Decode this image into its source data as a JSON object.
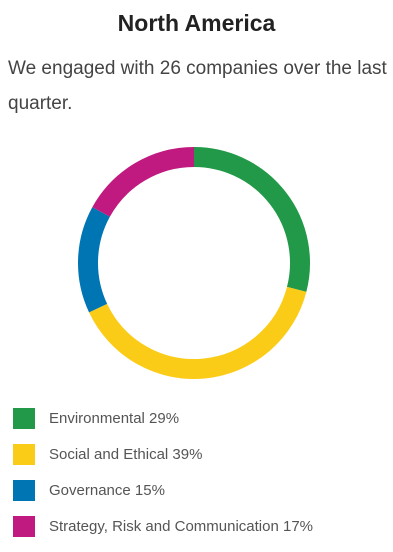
{
  "title": "North America",
  "intro": "We engaged with 26 companies over the last quarter.",
  "chart_data": {
    "type": "pie",
    "style": "donut",
    "title": "",
    "categories": [
      "Environmental",
      "Social and Ethical",
      "Governance",
      "Strategy, Risk and Communication"
    ],
    "values": [
      29,
      39,
      15,
      17
    ],
    "unit": "%",
    "colors": [
      "#219948",
      "#fbcc17",
      "#0075b3",
      "#c0197f"
    ],
    "legend_position": "bottom-left",
    "legend_labels": [
      "Environmental 29%",
      "Social and Ethical 39%",
      "Governance 15%",
      "Strategy, Risk and Communication 17%"
    ]
  }
}
